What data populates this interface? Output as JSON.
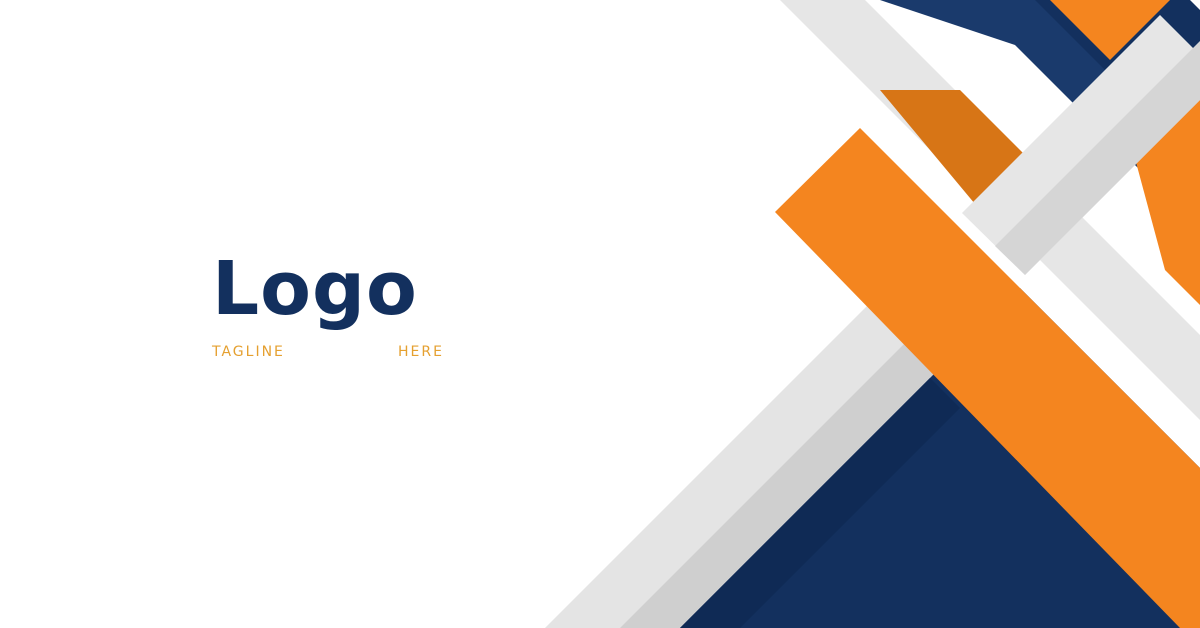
{
  "logo": {
    "wordmark": "Logo",
    "tagline_part1": "TAGLINE",
    "tagline_part2": "HERE"
  },
  "colors": {
    "background": "#ffffff",
    "navy": "#13305e",
    "orange": "#f4851f",
    "light_gray": "#e3e3e3",
    "mid_gray": "#cfcfcf",
    "tagline_gold": "#e5a030"
  }
}
